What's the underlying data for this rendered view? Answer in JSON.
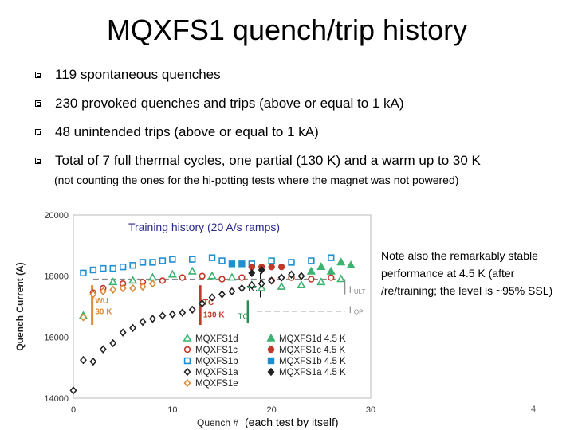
{
  "slide": {
    "title": "MQXFS1 quench/trip history",
    "bullets": [
      "119 spontaneous quenches",
      "230 provoked quenches and trips (above or equal to 1 kA)",
      "48 unintended trips (above or equal to 1 kA)",
      "Total of 7 full thermal cycles, one partial (130 K) and a warm up to 30 K"
    ],
    "subnote": "(not counting the ones for the hi-potting tests where the magnet was not powered)",
    "note": "Note also the remarkably stable performance at 4.5 K (after /re/training; the level is ~95% SSL)",
    "page_number": "4"
  },
  "chart_data": {
    "type": "scatter",
    "title": "Training history (20 A/s ramps)",
    "xlabel_main": "Quench #",
    "xlabel_suffix": "(each test by itself)",
    "ylabel": "Quench Current (A)",
    "xlim": [
      0,
      30
    ],
    "ylim": [
      14000,
      20000
    ],
    "x_ticks": [
      0,
      10,
      20,
      30
    ],
    "y_ticks": [
      14000,
      16000,
      18000,
      20000
    ],
    "grid": false,
    "legend_position": "bottom-center",
    "colors": {
      "d": "#3cb371",
      "c": "#c0392b",
      "b": "#1f8fd0",
      "a": "#222222",
      "e": "#d98b3a",
      "wu": "#d98b3a",
      "tc130": "#c0392b",
      "tc": "#2e8b57"
    },
    "series": [
      {
        "key": "d",
        "name": "MQXFS1d",
        "filled": false,
        "marker": "triangle",
        "x": [
          1,
          4,
          6,
          8,
          10,
          12,
          14,
          16,
          18,
          19,
          21,
          23,
          25,
          27
        ],
        "y": [
          16700,
          17800,
          17850,
          17950,
          18050,
          18150,
          18000,
          17950,
          17700,
          17600,
          17650,
          17700,
          17800,
          17900
        ]
      },
      {
        "key": "c",
        "name": "MQXFS1c",
        "filled": false,
        "marker": "circle",
        "x": [
          2,
          3,
          5,
          7,
          9,
          11,
          13,
          15,
          17,
          20,
          22,
          24,
          26
        ],
        "y": [
          17450,
          17600,
          17750,
          17800,
          17850,
          17950,
          18000,
          17900,
          17950,
          17850,
          17950,
          17900,
          17950
        ]
      },
      {
        "key": "b",
        "name": "MQXFS1b",
        "filled": false,
        "marker": "square",
        "x": [
          1,
          2,
          3,
          4,
          5,
          6,
          7,
          8,
          9,
          10,
          12,
          14,
          15,
          18,
          20,
          22,
          24,
          26
        ],
        "y": [
          18100,
          18200,
          18250,
          18250,
          18300,
          18350,
          18450,
          18450,
          18500,
          18550,
          18550,
          18600,
          18500,
          18400,
          18500,
          18450,
          18500,
          18600
        ]
      },
      {
        "key": "a",
        "name": "MQXFS1a",
        "filled": false,
        "marker": "diamond",
        "x": [
          0,
          1,
          2,
          3,
          4,
          5,
          6,
          7,
          8,
          9,
          10,
          11,
          12,
          13,
          14,
          15,
          16,
          17,
          18,
          19,
          20,
          21,
          22,
          23
        ],
        "y": [
          14250,
          15250,
          15200,
          15600,
          15800,
          16150,
          16300,
          16500,
          16600,
          16700,
          16750,
          16800,
          16900,
          17100,
          17300,
          17400,
          17500,
          17600,
          17700,
          17750,
          17850,
          17950,
          18050,
          18000
        ]
      },
      {
        "key": "e",
        "name": "MQXFS1e",
        "filled": false,
        "marker": "diamond",
        "x": [
          1,
          2,
          3,
          4,
          5,
          6,
          7,
          8
        ],
        "y": [
          16650,
          17400,
          17500,
          17550,
          17600,
          17600,
          17650,
          17750
        ]
      },
      {
        "key": "d45",
        "name": "MQXFS1d 4.5 K",
        "filled": true,
        "marker": "triangle",
        "x": [
          24,
          25,
          26,
          27,
          28
        ],
        "y": [
          18150,
          18300,
          18150,
          18450,
          18350
        ]
      },
      {
        "key": "c45",
        "name": "MQXFS1c 4.5 K",
        "filled": true,
        "marker": "circle",
        "x": [
          18,
          19,
          20,
          21
        ],
        "y": [
          18300,
          18300,
          18300,
          18300
        ]
      },
      {
        "key": "b45",
        "name": "MQXFS1b 4.5 K",
        "filled": true,
        "marker": "square",
        "x": [
          16,
          17
        ],
        "y": [
          18400,
          18400
        ]
      },
      {
        "key": "a45",
        "name": "MQXFS1a 4.5 K",
        "filled": true,
        "marker": "diamond",
        "x": [
          18,
          19
        ],
        "y": [
          18100,
          18200
        ]
      }
    ],
    "annotations": {
      "wu": "WU",
      "wu_temp": "30 K",
      "tc": "TC",
      "tc_temp": "130 K",
      "tc2": "TC",
      "tc3": "TC",
      "iult": "I",
      "iult_sub": "ULT",
      "iop": "I",
      "iop_sub": "OP"
    },
    "reference_levels": {
      "ult": 17900,
      "op": 16850
    }
  }
}
